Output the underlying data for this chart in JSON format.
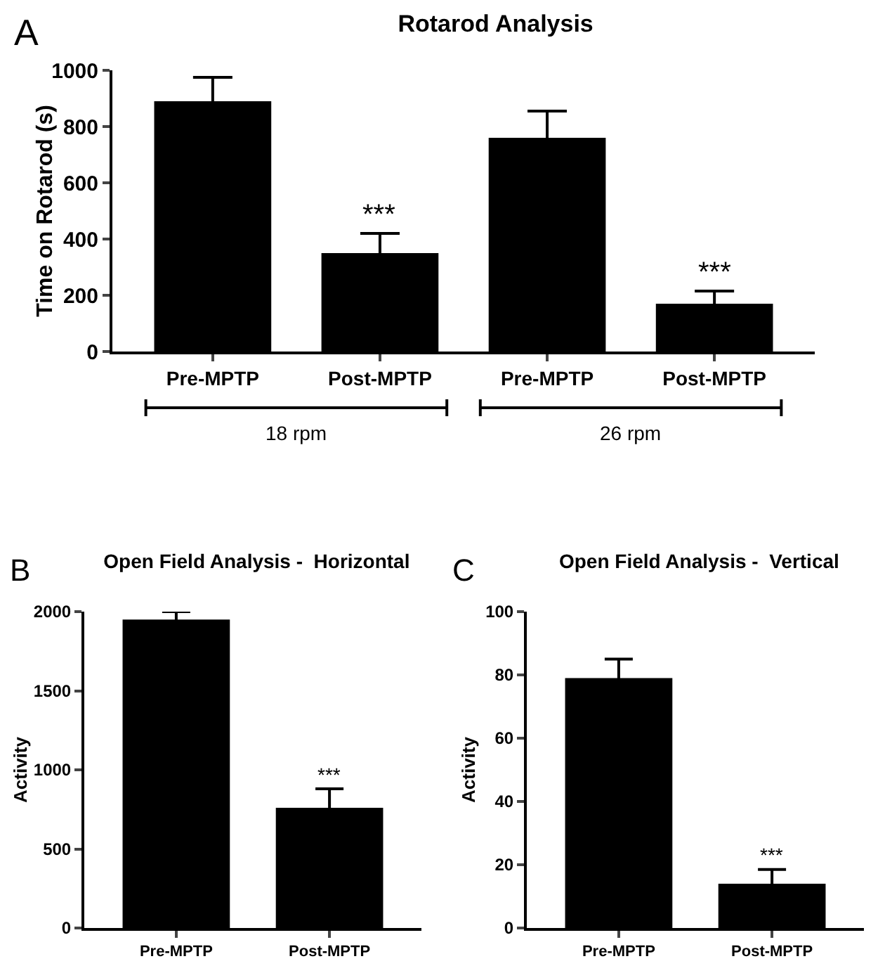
{
  "chart_data": [
    {
      "type": "bar",
      "title": "Rotarod Analysis",
      "ylabel": "Time on Rotarod (s)",
      "categories": [
        "Pre-MPTP",
        "Post-MPTP",
        "Pre-MPTP",
        "Post-MPTP"
      ],
      "values": [
        890,
        350,
        760,
        170
      ],
      "errors": [
        85,
        70,
        95,
        45
      ],
      "color": "#000000",
      "ylim": [
        0,
        1000
      ],
      "yticks": [
        0,
        200,
        400,
        600,
        800,
        1000
      ],
      "grid": false,
      "annotations": [
        "A",
        "18 rpm",
        "26 rpm",
        {
          "text": "***",
          "x": "Post-MPTP",
          "y": 420
        },
        {
          "text": "***",
          "y": 215
        }
      ]
    },
    {
      "type": "bar",
      "title": "Open Field Analysis -  Horizontal",
      "ylabel": "Activity",
      "categories": [
        "Pre-MPTP",
        "Post-MPTP"
      ],
      "values": [
        1950,
        760
      ],
      "errors": [
        50,
        120
      ],
      "color": "#000000",
      "ylim": [
        0,
        2000
      ],
      "yticks": [
        0,
        500,
        1000,
        1500,
        2000
      ],
      "grid": false,
      "annotations": [
        "B",
        {
          "text": "***",
          "x": "Post-MPTP",
          "y": 880
        }
      ]
    },
    {
      "type": "bar",
      "title": "Open Field Analysis -  Vertical",
      "ylabel": "Activity",
      "categories": [
        "Pre-MPTP",
        "Post-MPTP"
      ],
      "values": [
        79,
        14
      ],
      "errors": [
        6,
        4.5
      ],
      "color": "#000000",
      "ylim": [
        0,
        100
      ],
      "yticks": [
        0,
        20,
        40,
        60,
        80,
        100
      ],
      "grid": false,
      "annotations": [
        "C",
        {
          "text": "***",
          "x": "Post-MPTP",
          "y": 18.5
        }
      ]
    }
  ]
}
